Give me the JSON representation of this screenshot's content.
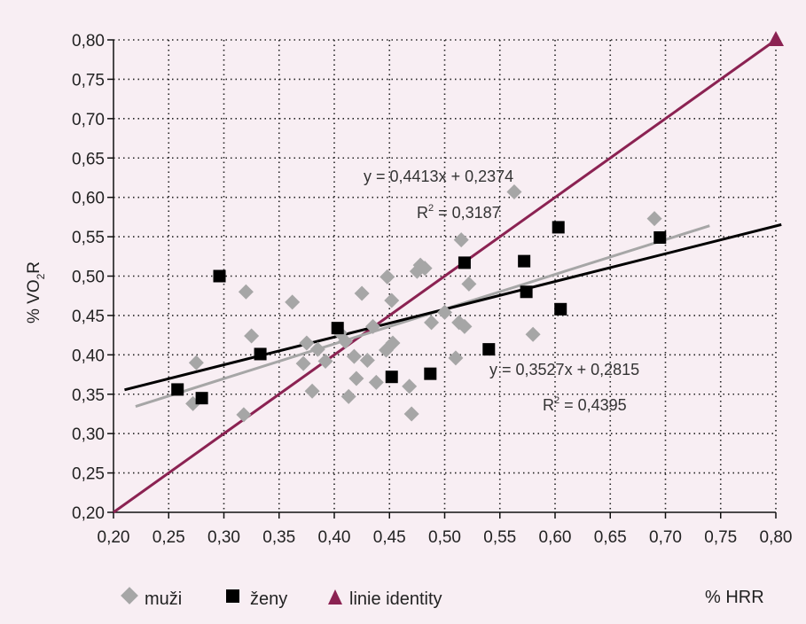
{
  "chart_data": {
    "type": "scatter",
    "xlabel": "% HRR",
    "ylabel": "% VO",
    "ylabel_sub": "2",
    "ylabel_tail": "R",
    "xlim": [
      0.2,
      0.8
    ],
    "ylim": [
      0.2,
      0.8
    ],
    "x_ticks": [
      "0,20",
      "0,25",
      "0,30",
      "0,35",
      "0,40",
      "0,45",
      "0,50",
      "0,55",
      "0,60",
      "0,65",
      "0,70",
      "0,75",
      "0,80"
    ],
    "y_ticks": [
      "0,20",
      "0,25",
      "0,30",
      "0,35",
      "0,40",
      "0,45",
      "0,50",
      "0,55",
      "0,60",
      "0,65",
      "0,70",
      "0,75",
      "0,80"
    ],
    "grid": true,
    "legend_position": "bottom",
    "colors": {
      "muzi": "#a6a6a6",
      "zeny": "#000000",
      "identity": "#8b2252"
    },
    "series": [
      {
        "name": "muži",
        "marker": "diamond",
        "points": [
          [
            0.275,
            0.39
          ],
          [
            0.272,
            0.338
          ],
          [
            0.318,
            0.324
          ],
          [
            0.32,
            0.48
          ],
          [
            0.325,
            0.424
          ],
          [
            0.362,
            0.467
          ],
          [
            0.372,
            0.389
          ],
          [
            0.375,
            0.415
          ],
          [
            0.38,
            0.354
          ],
          [
            0.385,
            0.407
          ],
          [
            0.392,
            0.392
          ],
          [
            0.405,
            0.428
          ],
          [
            0.41,
            0.417
          ],
          [
            0.413,
            0.347
          ],
          [
            0.418,
            0.398
          ],
          [
            0.42,
            0.37
          ],
          [
            0.425,
            0.478
          ],
          [
            0.43,
            0.393
          ],
          [
            0.435,
            0.436
          ],
          [
            0.438,
            0.365
          ],
          [
            0.447,
            0.406
          ],
          [
            0.448,
            0.499
          ],
          [
            0.452,
            0.469
          ],
          [
            0.453,
            0.415
          ],
          [
            0.468,
            0.36
          ],
          [
            0.47,
            0.325
          ],
          [
            0.475,
            0.506
          ],
          [
            0.478,
            0.514
          ],
          [
            0.482,
            0.51
          ],
          [
            0.488,
            0.441
          ],
          [
            0.5,
            0.454
          ],
          [
            0.51,
            0.396
          ],
          [
            0.513,
            0.441
          ],
          [
            0.515,
            0.546
          ],
          [
            0.518,
            0.436
          ],
          [
            0.522,
            0.49
          ],
          [
            0.563,
            0.607
          ],
          [
            0.58,
            0.426
          ],
          [
            0.69,
            0.573
          ]
        ]
      },
      {
        "name": "ženy",
        "marker": "square",
        "points": [
          [
            0.258,
            0.356
          ],
          [
            0.28,
            0.345
          ],
          [
            0.296,
            0.5
          ],
          [
            0.333,
            0.401
          ],
          [
            0.403,
            0.434
          ],
          [
            0.452,
            0.372
          ],
          [
            0.487,
            0.376
          ],
          [
            0.518,
            0.517
          ],
          [
            0.54,
            0.407
          ],
          [
            0.572,
            0.519
          ],
          [
            0.574,
            0.48
          ],
          [
            0.603,
            0.562
          ],
          [
            0.605,
            0.458
          ],
          [
            0.695,
            0.549
          ]
        ]
      }
    ],
    "trendlines": [
      {
        "series": "muži",
        "x_range": [
          0.22,
          0.74
        ],
        "slope": 0.4413,
        "intercept": 0.2374,
        "equation": "y = 0,4413x + 0,2374",
        "r2_label": "R",
        "r2_sup": "2",
        "r2_value": " = 0,3187"
      },
      {
        "series": "ženy",
        "x_range": [
          0.21,
          0.805
        ],
        "slope": 0.3527,
        "intercept": 0.2815,
        "equation": "y = 0,3527x + 0,2815",
        "r2_label": "R",
        "r2_sup": "2",
        "r2_value": " = 0,4395"
      }
    ],
    "identity": {
      "name": "linie identity",
      "from": [
        0.2,
        0.2
      ],
      "to": [
        0.8,
        0.8
      ]
    }
  }
}
